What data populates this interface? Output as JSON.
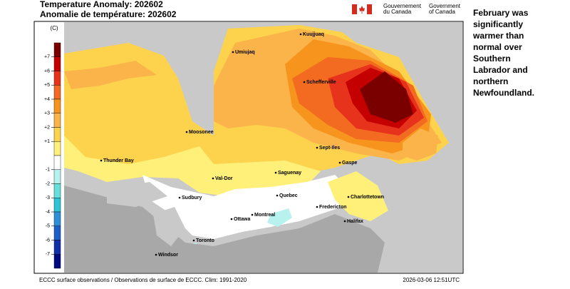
{
  "header": {
    "title_en": "Temperature Anomaly: 202602",
    "title_fr": "Anomalie de température: 202602"
  },
  "logo": {
    "fr": [
      "Gouvernement",
      "du Canada"
    ],
    "en": [
      "Government",
      "of Canada"
    ]
  },
  "legend": {
    "unit": "(C)",
    "ticks": [
      "+7",
      "+6",
      "+5",
      "+4",
      "+3",
      "+2",
      "+1",
      "-1",
      "-2",
      "-3",
      "-4",
      "-5",
      "-6",
      "-7"
    ],
    "colors": [
      "#7a0000",
      "#c40000",
      "#e8331c",
      "#f26b21",
      "#f7941d",
      "#fbb44a",
      "#fdd34d",
      "#fff07a",
      "#ffffff",
      "#b8f2ef",
      "#66e0da",
      "#2ec4d6",
      "#2f8fd8",
      "#1f5fc8",
      "#1230a8",
      "#000a80"
    ]
  },
  "cities": [
    "Kuujjuaq",
    "Umiujaq",
    "Schefferville",
    "Moosonee",
    "Sept-Iles",
    "Thunder Bay",
    "Val-Dor",
    "Gaspe",
    "Saguenay",
    "Sudbury",
    "Quebec",
    "Charlottetown",
    "Fredericton",
    "Ottawa",
    "Montreal",
    "Halifax",
    "Toronto",
    "Windsor"
  ],
  "footer": {
    "source": "ECCC surface observations / Observations de surface de ECCC. Clim: 1991-2020",
    "timestamp": "2026-03-06 12:51UTC"
  },
  "note": [
    "February was",
    "significantly",
    "warmer than",
    "normal over",
    "Southern",
    "Labrador and",
    "northern",
    "Newfoundland."
  ]
}
